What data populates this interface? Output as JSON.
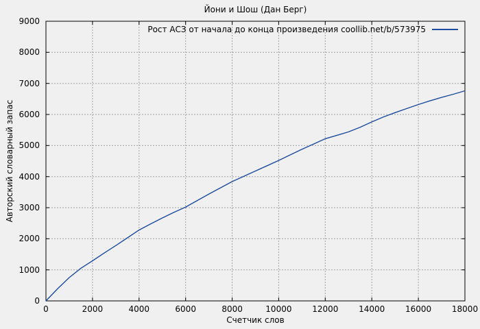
{
  "title": "Йони и Шош (Дан Берг)",
  "chart_data": {
    "type": "line",
    "title": "Йони и Шош (Дан Берг)",
    "xlabel": "Счетчик слов",
    "ylabel": "Авторский словарный запас",
    "xlim": [
      0,
      18000
    ],
    "ylim": [
      0,
      9000
    ],
    "xticks": [
      0,
      2000,
      4000,
      6000,
      8000,
      10000,
      12000,
      14000,
      16000,
      18000
    ],
    "yticks": [
      0,
      1000,
      2000,
      3000,
      4000,
      5000,
      6000,
      7000,
      8000,
      9000
    ],
    "grid": true,
    "legend_position": "top-right-inside",
    "background_color": "#f0f0f0",
    "grid_color": "#a0a0a0",
    "axis_color": "#000000",
    "series": [
      {
        "name": "Рост АСЗ от начала до конца произведения coollib.net/b/573975",
        "color": "#1b4a9e",
        "x": [
          0,
          500,
          1000,
          1500,
          2000,
          2500,
          3000,
          3500,
          4000,
          4500,
          5000,
          5500,
          6000,
          6500,
          7000,
          7500,
          8000,
          8500,
          9000,
          9500,
          10000,
          10500,
          11000,
          11500,
          12000,
          12500,
          13000,
          13500,
          14000,
          14500,
          15000,
          15500,
          16000,
          16500,
          17000,
          17500,
          18000
        ],
        "y": [
          0,
          390,
          750,
          1050,
          1290,
          1540,
          1780,
          2030,
          2280,
          2480,
          2670,
          2850,
          3020,
          3230,
          3440,
          3640,
          3840,
          4010,
          4180,
          4350,
          4520,
          4700,
          4880,
          5050,
          5220,
          5330,
          5440,
          5590,
          5760,
          5920,
          6060,
          6190,
          6320,
          6440,
          6550,
          6650,
          6760
        ]
      }
    ]
  }
}
